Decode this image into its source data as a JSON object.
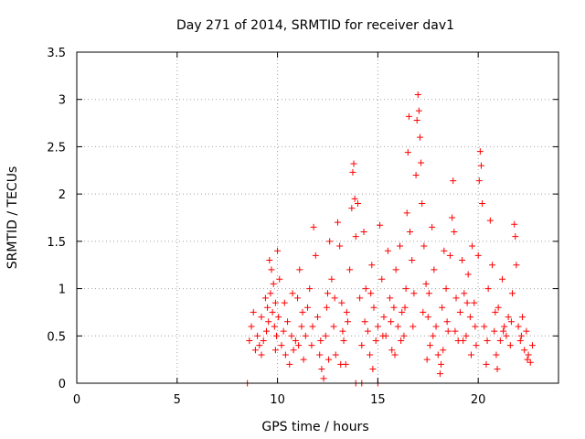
{
  "chart_data": {
    "type": "scatter",
    "title": "Day 271 of 2014, SRMTID for receiver dav1",
    "xlabel": "GPS time / hours",
    "ylabel": "SRMTID / TECUs",
    "xlim": [
      0,
      24
    ],
    "ylim": [
      0,
      3.5
    ],
    "xticks": [
      0,
      5,
      10,
      15,
      20
    ],
    "xtick_labels": [
      "0",
      "5",
      "10",
      "15",
      "20"
    ],
    "yticks": [
      0,
      0.5,
      1,
      1.5,
      2,
      2.5,
      3,
      3.5
    ],
    "ytick_labels": [
      "0",
      "0.5",
      "1",
      "1.5",
      "2",
      "2.5",
      "3",
      "3.5"
    ],
    "grid": true,
    "marker": "+",
    "series": [
      {
        "name": "dav1",
        "color": "#ff0000",
        "points": [
          [
            8.5,
            0.0
          ],
          [
            13.9,
            0.0
          ],
          [
            14.2,
            0.0
          ],
          [
            15.0,
            0.0
          ],
          [
            8.6,
            0.45
          ],
          [
            8.7,
            0.6
          ],
          [
            8.8,
            0.75
          ],
          [
            8.9,
            0.35
          ],
          [
            9.0,
            0.5
          ],
          [
            9.1,
            0.4
          ],
          [
            9.2,
            0.7
          ],
          [
            9.3,
            0.45
          ],
          [
            9.4,
            0.9
          ],
          [
            9.5,
            0.8
          ],
          [
            9.6,
            1.3
          ],
          [
            9.7,
            1.2
          ],
          [
            9.8,
            1.05
          ],
          [
            9.9,
            0.85
          ],
          [
            10.0,
            1.4
          ],
          [
            10.1,
            1.1
          ],
          [
            9.45,
            0.55
          ],
          [
            9.55,
            0.65
          ],
          [
            9.65,
            0.95
          ],
          [
            9.75,
            0.75
          ],
          [
            9.85,
            0.6
          ],
          [
            9.95,
            0.5
          ],
          [
            10.05,
            0.7
          ],
          [
            10.2,
            0.4
          ],
          [
            10.3,
            0.55
          ],
          [
            10.4,
            0.3
          ],
          [
            10.5,
            0.65
          ],
          [
            10.6,
            0.2
          ],
          [
            10.7,
            0.5
          ],
          [
            10.8,
            0.35
          ],
          [
            10.9,
            0.45
          ],
          [
            11.0,
            0.9
          ],
          [
            11.1,
            1.2
          ],
          [
            11.2,
            0.6
          ],
          [
            11.3,
            0.25
          ],
          [
            11.4,
            0.5
          ],
          [
            11.5,
            0.8
          ],
          [
            11.6,
            1.0
          ],
          [
            11.7,
            0.4
          ],
          [
            11.8,
            1.65
          ],
          [
            11.9,
            1.35
          ],
          [
            12.0,
            0.7
          ],
          [
            12.1,
            0.3
          ],
          [
            12.2,
            0.15
          ],
          [
            12.3,
            0.05
          ],
          [
            12.4,
            0.5
          ],
          [
            12.5,
            0.95
          ],
          [
            12.6,
            1.5
          ],
          [
            12.7,
            1.1
          ],
          [
            12.8,
            0.6
          ],
          [
            12.9,
            0.3
          ],
          [
            13.0,
            1.7
          ],
          [
            13.1,
            1.45
          ],
          [
            13.2,
            0.85
          ],
          [
            13.3,
            0.45
          ],
          [
            13.4,
            0.2
          ],
          [
            13.5,
            0.65
          ],
          [
            13.6,
            1.2
          ],
          [
            13.7,
            1.85
          ],
          [
            13.75,
            2.23
          ],
          [
            13.8,
            2.32
          ],
          [
            13.85,
            1.95
          ],
          [
            13.9,
            1.55
          ],
          [
            14.0,
            1.9
          ],
          [
            14.1,
            0.9
          ],
          [
            14.2,
            0.4
          ],
          [
            14.3,
            1.6
          ],
          [
            14.4,
            1.0
          ],
          [
            14.5,
            0.55
          ],
          [
            14.6,
            0.3
          ],
          [
            14.7,
            1.25
          ],
          [
            14.8,
            0.8
          ],
          [
            14.9,
            0.45
          ],
          [
            15.0,
            0.6
          ],
          [
            15.1,
            1.67
          ],
          [
            15.2,
            1.1
          ],
          [
            15.3,
            0.7
          ],
          [
            15.4,
            0.5
          ],
          [
            15.5,
            1.4
          ],
          [
            15.6,
            0.9
          ],
          [
            15.7,
            0.35
          ],
          [
            15.8,
            0.8
          ],
          [
            15.9,
            1.2
          ],
          [
            16.0,
            0.6
          ],
          [
            16.1,
            1.45
          ],
          [
            16.2,
            0.75
          ],
          [
            16.3,
            0.5
          ],
          [
            16.4,
            1.0
          ],
          [
            16.45,
            1.8
          ],
          [
            16.5,
            2.44
          ],
          [
            16.55,
            2.82
          ],
          [
            16.6,
            1.6
          ],
          [
            16.7,
            1.3
          ],
          [
            16.8,
            0.95
          ],
          [
            16.9,
            2.2
          ],
          [
            16.95,
            2.78
          ],
          [
            17.0,
            3.05
          ],
          [
            17.05,
            2.88
          ],
          [
            17.1,
            2.6
          ],
          [
            17.15,
            2.33
          ],
          [
            17.2,
            1.9
          ],
          [
            17.3,
            1.45
          ],
          [
            17.4,
            1.05
          ],
          [
            17.5,
            0.7
          ],
          [
            17.6,
            0.4
          ],
          [
            17.7,
            1.65
          ],
          [
            17.8,
            1.2
          ],
          [
            17.9,
            0.6
          ],
          [
            18.0,
            0.3
          ],
          [
            18.1,
            0.1
          ],
          [
            18.2,
            0.8
          ],
          [
            18.3,
            1.4
          ],
          [
            18.4,
            1.0
          ],
          [
            18.5,
            0.55
          ],
          [
            18.6,
            1.35
          ],
          [
            18.7,
            1.75
          ],
          [
            18.75,
            2.14
          ],
          [
            18.8,
            1.6
          ],
          [
            18.9,
            0.9
          ],
          [
            19.0,
            0.45
          ],
          [
            19.1,
            0.75
          ],
          [
            19.2,
            1.3
          ],
          [
            19.3,
            0.95
          ],
          [
            19.4,
            0.5
          ],
          [
            19.5,
            1.15
          ],
          [
            19.6,
            0.7
          ],
          [
            19.7,
            1.45
          ],
          [
            19.8,
            0.85
          ],
          [
            19.9,
            0.4
          ],
          [
            20.0,
            1.35
          ],
          [
            20.05,
            2.14
          ],
          [
            20.1,
            2.45
          ],
          [
            20.15,
            2.3
          ],
          [
            20.2,
            1.9
          ],
          [
            20.3,
            0.6
          ],
          [
            20.4,
            0.2
          ],
          [
            20.5,
            1.0
          ],
          [
            20.6,
            1.72
          ],
          [
            20.7,
            1.25
          ],
          [
            20.8,
            0.55
          ],
          [
            20.9,
            0.3
          ],
          [
            21.0,
            0.8
          ],
          [
            21.1,
            0.45
          ],
          [
            21.2,
            1.1
          ],
          [
            21.3,
            0.6
          ],
          [
            21.4,
            0.5
          ],
          [
            21.5,
            0.7
          ],
          [
            21.6,
            0.4
          ],
          [
            21.7,
            0.95
          ],
          [
            21.8,
            1.68
          ],
          [
            21.85,
            1.55
          ],
          [
            21.9,
            1.25
          ],
          [
            22.0,
            0.6
          ],
          [
            22.1,
            0.45
          ],
          [
            22.2,
            0.7
          ],
          [
            22.3,
            0.35
          ],
          [
            22.4,
            0.55
          ],
          [
            22.5,
            0.3
          ],
          [
            22.6,
            0.22
          ],
          [
            22.7,
            0.4
          ],
          [
            10.35,
            0.85
          ],
          [
            10.75,
            0.95
          ],
          [
            11.25,
            0.75
          ],
          [
            11.75,
            0.6
          ],
          [
            12.15,
            0.45
          ],
          [
            12.45,
            0.8
          ],
          [
            12.85,
            0.9
          ],
          [
            13.25,
            0.55
          ],
          [
            13.45,
            0.75
          ],
          [
            14.35,
            0.65
          ],
          [
            14.65,
            0.95
          ],
          [
            15.25,
            0.5
          ],
          [
            15.65,
            0.65
          ],
          [
            16.15,
            0.45
          ],
          [
            16.35,
            0.8
          ],
          [
            16.75,
            0.6
          ],
          [
            17.25,
            0.75
          ],
          [
            17.55,
            0.95
          ],
          [
            17.75,
            0.5
          ],
          [
            18.25,
            0.35
          ],
          [
            18.45,
            0.65
          ],
          [
            18.85,
            0.55
          ],
          [
            19.25,
            0.45
          ],
          [
            19.45,
            0.85
          ],
          [
            19.85,
            0.6
          ],
          [
            20.45,
            0.45
          ],
          [
            20.85,
            0.75
          ],
          [
            21.25,
            0.55
          ],
          [
            21.65,
            0.65
          ],
          [
            22.15,
            0.5
          ],
          [
            9.2,
            0.3
          ],
          [
            9.9,
            0.35
          ],
          [
            11.05,
            0.4
          ],
          [
            12.55,
            0.25
          ],
          [
            13.15,
            0.2
          ],
          [
            14.75,
            0.15
          ],
          [
            15.85,
            0.3
          ],
          [
            17.45,
            0.25
          ],
          [
            18.15,
            0.2
          ],
          [
            19.65,
            0.3
          ],
          [
            20.95,
            0.15
          ],
          [
            22.45,
            0.25
          ]
        ]
      }
    ]
  }
}
